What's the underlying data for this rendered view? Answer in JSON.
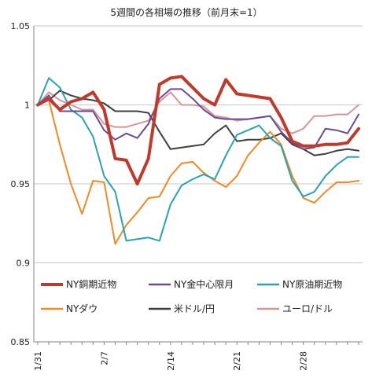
{
  "chart_data": {
    "type": "line",
    "title": "5週間の各相場の推移（前月末=1）",
    "xlabel": "",
    "ylabel": "",
    "ylim": [
      0.85,
      1.05
    ],
    "yticks": [
      0.85,
      0.9,
      0.95,
      1,
      1.05
    ],
    "ytick_labels": [
      "0.85",
      "0.9",
      "0.95",
      "1",
      "1.05"
    ],
    "xtick_labels": [
      "1/31",
      "2/7",
      "2/14",
      "2/21",
      "2/28"
    ],
    "xtick_index": [
      0,
      6,
      12,
      18,
      24
    ],
    "n_points": 30,
    "grid": "horizontal",
    "legend_placement": "bottom, inside plot, 3 columns",
    "series": [
      {
        "name": "NY銅期近物",
        "color": "#c0392b",
        "width": 4,
        "values": [
          1.0,
          1.004,
          0.997,
          1.002,
          1.004,
          1.008,
          0.997,
          0.966,
          0.965,
          0.95,
          0.966,
          1.013,
          1.017,
          1.018,
          1.011,
          1.004,
          1.0,
          1.016,
          1.007,
          1.006,
          1.005,
          1.004,
          0.992,
          0.977,
          0.974,
          0.974,
          0.975,
          0.975,
          0.976,
          0.985
        ]
      },
      {
        "name": "NY金中心限月",
        "color": "#6a4c93",
        "width": 2,
        "values": [
          1.0,
          1.006,
          0.996,
          0.996,
          0.996,
          0.996,
          0.984,
          0.978,
          0.982,
          0.979,
          0.988,
          1.004,
          1.01,
          1.01,
          1.004,
          0.997,
          0.992,
          0.991,
          0.991,
          0.991,
          0.992,
          0.993,
          0.983,
          0.976,
          0.972,
          0.973,
          0.985,
          0.984,
          0.982,
          0.994
        ]
      },
      {
        "name": "NY原油期近物",
        "color": "#2aa3b3",
        "width": 2,
        "values": [
          1.0,
          1.017,
          1.011,
          0.997,
          0.992,
          0.98,
          0.955,
          0.945,
          0.914,
          0.915,
          0.916,
          0.914,
          0.937,
          0.949,
          0.953,
          0.956,
          0.953,
          0.968,
          0.981,
          0.984,
          0.987,
          0.979,
          0.974,
          0.952,
          0.942,
          0.945,
          0.955,
          0.962,
          0.967,
          0.967
        ]
      },
      {
        "name": "NYダウ",
        "color": "#f08a24",
        "width": 2,
        "values": [
          1.0,
          1.003,
          0.975,
          0.95,
          0.931,
          0.952,
          0.951,
          0.912,
          0.924,
          0.932,
          0.941,
          0.942,
          0.955,
          0.963,
          0.964,
          0.957,
          0.952,
          0.948,
          0.955,
          0.968,
          0.976,
          0.983,
          0.975,
          0.955,
          0.941,
          0.938,
          0.945,
          0.951,
          0.951,
          0.952
        ]
      },
      {
        "name": "米ドル/円",
        "color": "#404040",
        "width": 2,
        "values": [
          1.0,
          1.003,
          1.009,
          1.006,
          1.004,
          1.003,
          1.001,
          0.996,
          0.996,
          0.996,
          0.995,
          0.983,
          0.972,
          0.973,
          0.974,
          0.975,
          0.982,
          0.987,
          0.977,
          0.978,
          0.978,
          0.979,
          0.982,
          0.975,
          0.972,
          0.968,
          0.969,
          0.971,
          0.972,
          0.971
        ]
      },
      {
        "name": "ユーロ/ドル",
        "color": "#d4959b",
        "width": 2,
        "values": [
          1.0,
          1.008,
          1.003,
          1.0,
          0.997,
          0.997,
          0.988,
          0.986,
          0.986,
          0.988,
          0.99,
          1.002,
          1.008,
          1.0,
          1.0,
          0.999,
          0.993,
          0.992,
          0.99,
          0.991,
          0.992,
          0.993,
          0.985,
          0.982,
          0.985,
          0.993,
          0.993,
          0.994,
          0.994,
          1.0
        ]
      }
    ]
  }
}
